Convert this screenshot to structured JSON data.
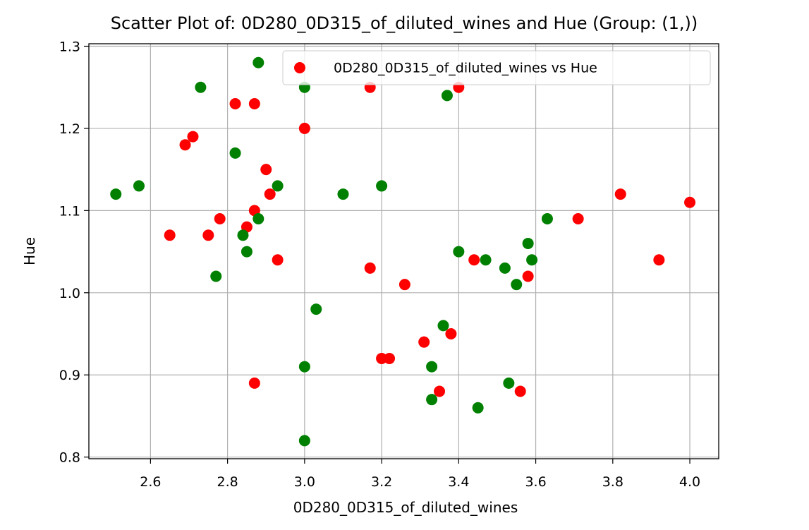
{
  "chart_data": {
    "type": "scatter",
    "title": "Scatter Plot of: 0D280_0D315_of_diluted_wines and Hue (Group: (1,))",
    "xlabel": "0D280_0D315_of_diluted_wines",
    "ylabel": "Hue",
    "xlim": [
      2.44,
      4.075
    ],
    "ylim": [
      0.798,
      1.303
    ],
    "xticks": [
      "2.6",
      "2.8",
      "3.0",
      "3.2",
      "3.4",
      "3.6",
      "3.8",
      "4.0"
    ],
    "yticks": [
      "0.8",
      "0.9",
      "1.0",
      "1.1",
      "1.2",
      "1.3"
    ],
    "grid": true,
    "legend": {
      "placement": "top-right",
      "entries": [
        "0D280_0D315_of_diluted_wines vs Hue"
      ]
    },
    "series": [
      {
        "name": "0D280_0D315_of_diluted_wines vs Hue",
        "color": "#ff0000",
        "points": [
          [
            3.17,
            1.25
          ],
          [
            3.4,
            1.25
          ],
          [
            2.82,
            1.23
          ],
          [
            2.87,
            1.23
          ],
          [
            3.0,
            1.2
          ],
          [
            2.71,
            1.19
          ],
          [
            2.69,
            1.18
          ],
          [
            2.9,
            1.15
          ],
          [
            2.91,
            1.12
          ],
          [
            3.82,
            1.12
          ],
          [
            4.0,
            1.11
          ],
          [
            2.87,
            1.1
          ],
          [
            2.78,
            1.09
          ],
          [
            3.71,
            1.09
          ],
          [
            2.85,
            1.08
          ],
          [
            2.65,
            1.07
          ],
          [
            2.75,
            1.07
          ],
          [
            2.93,
            1.04
          ],
          [
            3.44,
            1.04
          ],
          [
            3.92,
            1.04
          ],
          [
            3.17,
            1.03
          ],
          [
            3.58,
            1.02
          ],
          [
            3.26,
            1.01
          ],
          [
            3.38,
            0.95
          ],
          [
            3.31,
            0.94
          ],
          [
            3.2,
            0.92
          ],
          [
            3.22,
            0.92
          ],
          [
            2.87,
            0.89
          ],
          [
            3.35,
            0.88
          ],
          [
            3.56,
            0.88
          ]
        ]
      },
      {
        "color": "#008000",
        "points": [
          [
            2.88,
            1.28
          ],
          [
            2.73,
            1.25
          ],
          [
            3.0,
            1.25
          ],
          [
            3.37,
            1.24
          ],
          [
            2.82,
            1.17
          ],
          [
            2.57,
            1.13
          ],
          [
            2.93,
            1.13
          ],
          [
            3.2,
            1.13
          ],
          [
            2.51,
            1.12
          ],
          [
            3.1,
            1.12
          ],
          [
            2.88,
            1.09
          ],
          [
            3.63,
            1.09
          ],
          [
            2.84,
            1.07
          ],
          [
            3.58,
            1.06
          ],
          [
            2.85,
            1.05
          ],
          [
            3.4,
            1.05
          ],
          [
            3.47,
            1.04
          ],
          [
            3.59,
            1.04
          ],
          [
            3.52,
            1.03
          ],
          [
            2.77,
            1.02
          ],
          [
            3.55,
            1.01
          ],
          [
            3.03,
            0.98
          ],
          [
            3.36,
            0.96
          ],
          [
            3.0,
            0.91
          ],
          [
            3.33,
            0.91
          ],
          [
            3.53,
            0.89
          ],
          [
            3.33,
            0.87
          ],
          [
            3.45,
            0.86
          ],
          [
            3.0,
            0.82
          ]
        ]
      }
    ]
  }
}
